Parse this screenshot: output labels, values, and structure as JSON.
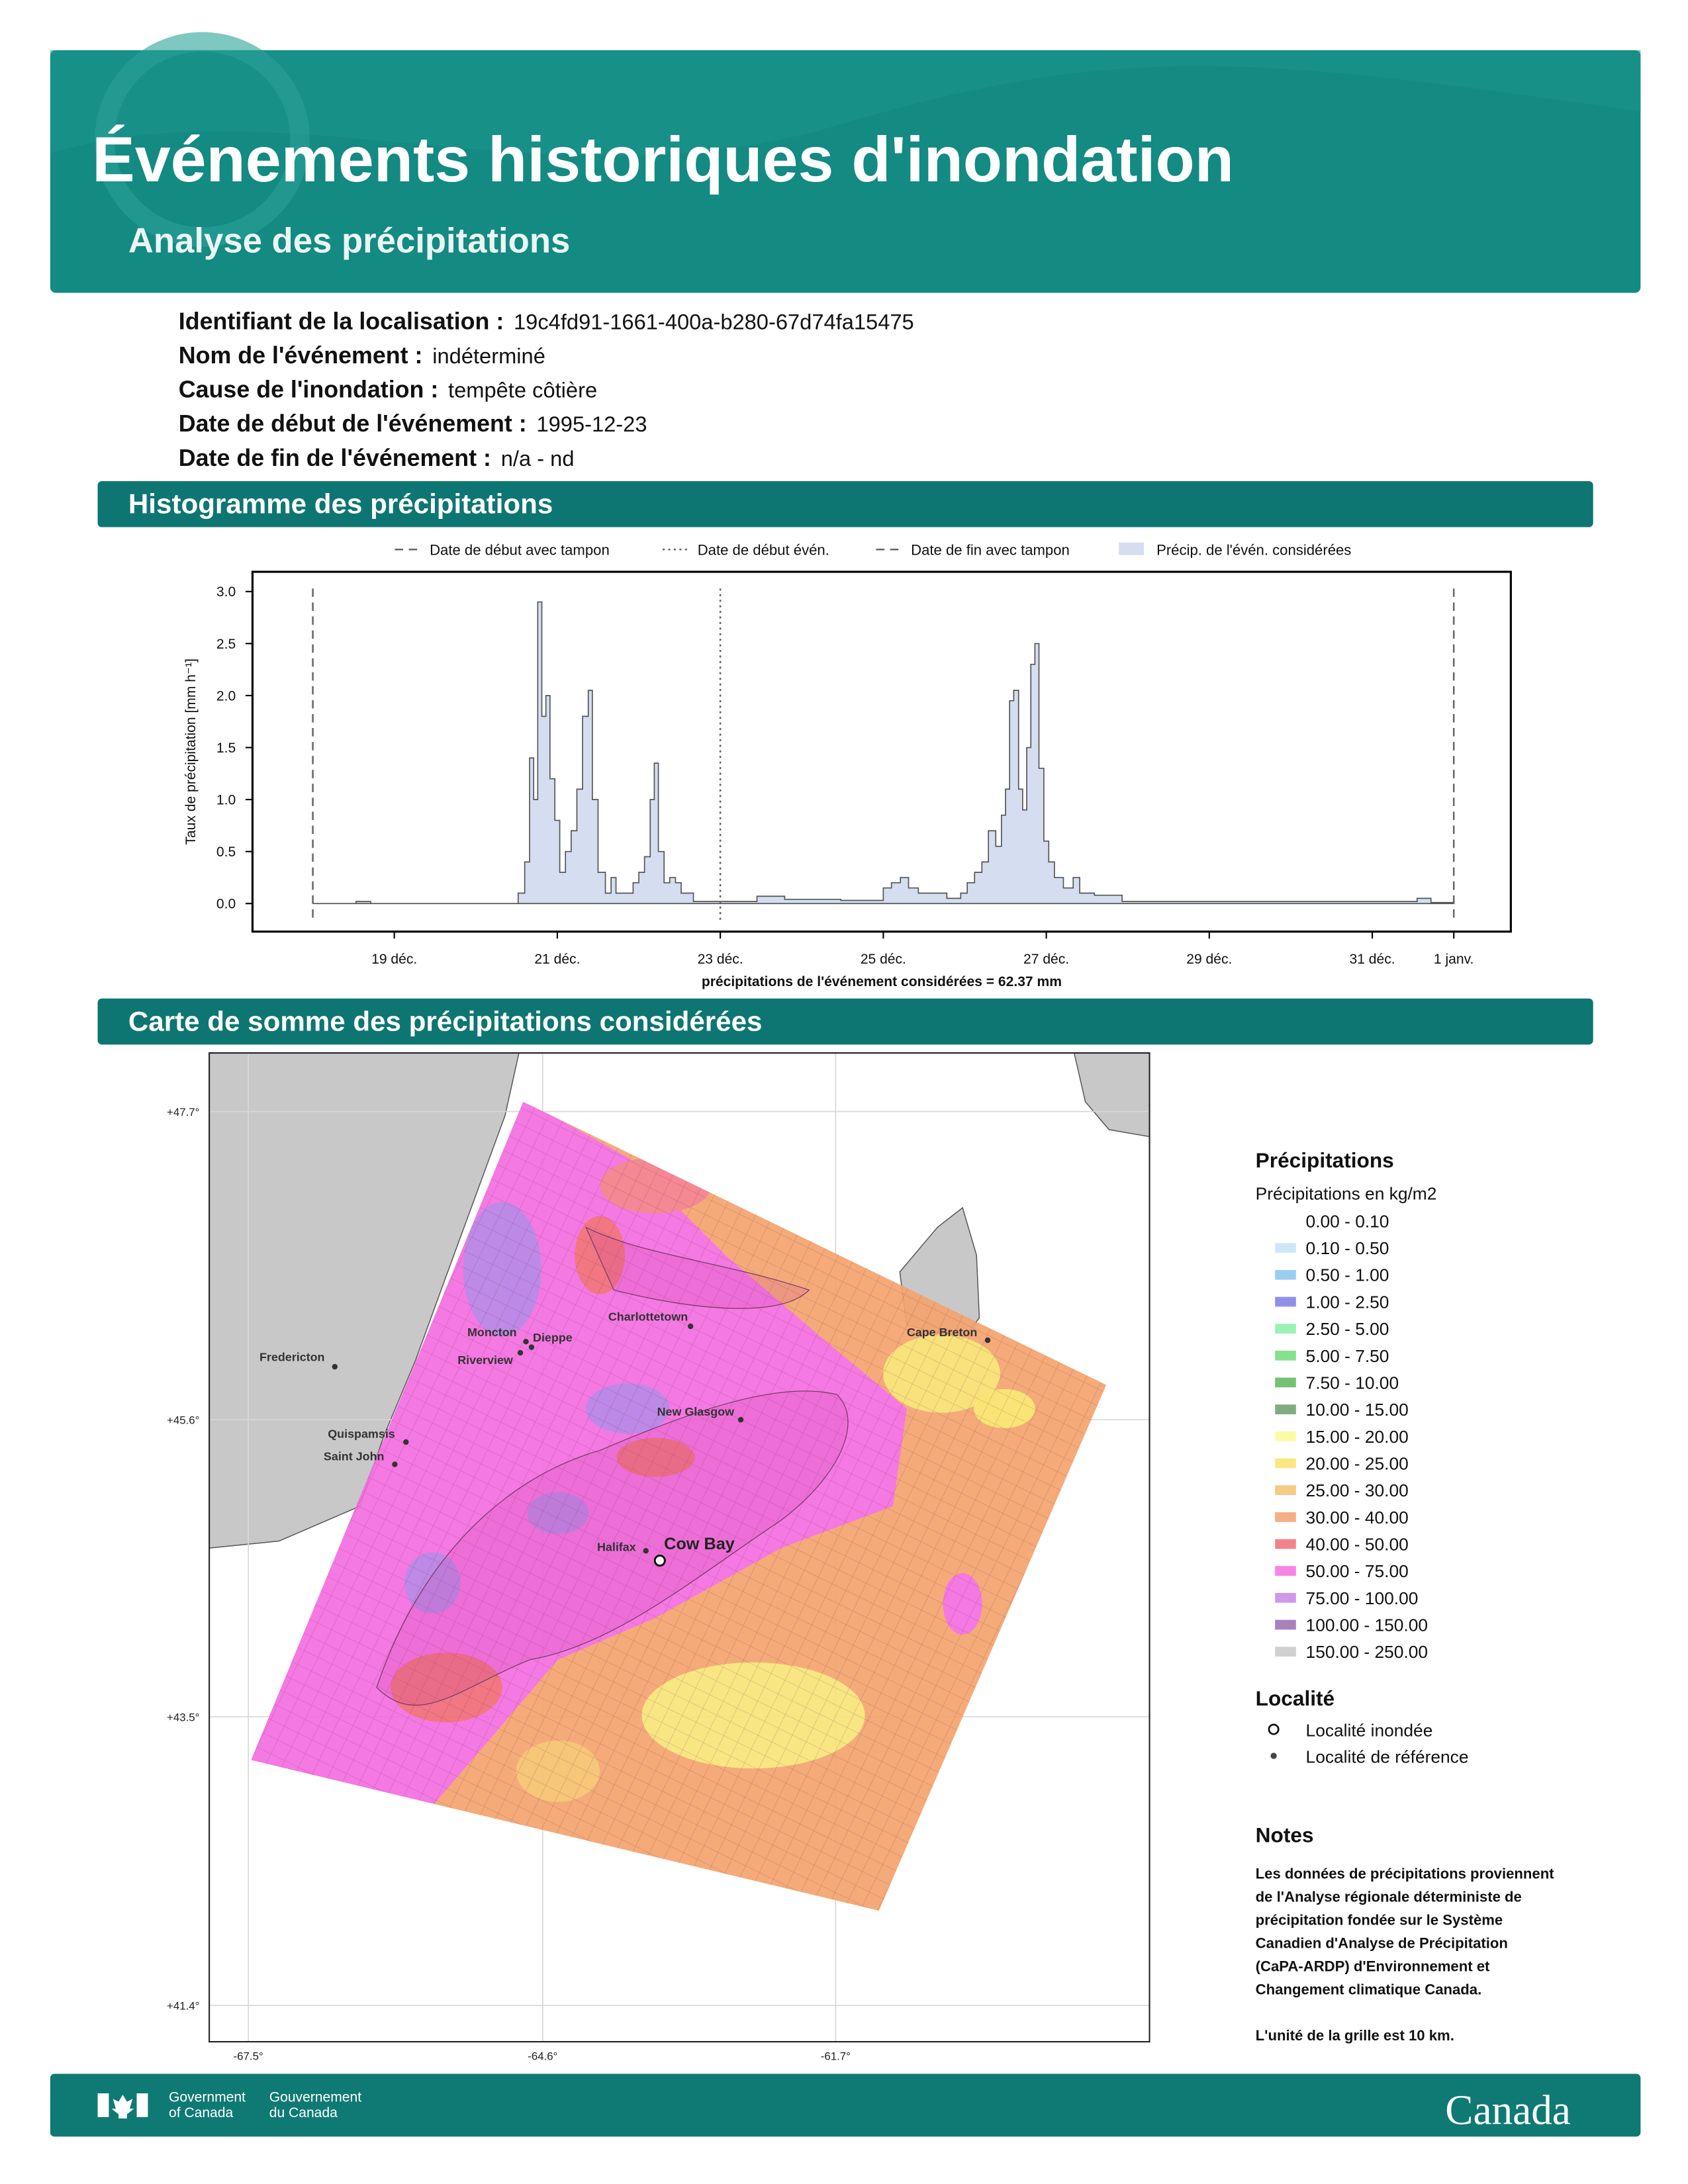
{
  "header": {
    "title": "Événements historiques d'inondation",
    "subtitle": "Analyse des précipitations"
  },
  "info": [
    {
      "label": "Identifiant de la localisation :",
      "value": "19c4fd91-1661-400a-b280-67d74fa15475"
    },
    {
      "label": "Nom de l'événement :",
      "value": "indéterminé"
    },
    {
      "label": "Cause de l'inondation :",
      "value": "tempête côtière"
    },
    {
      "label": "Date de début de l'événement :",
      "value": "1995-12-23"
    },
    {
      "label": "Date de fin de l'événement :",
      "value": "n/a - nd"
    }
  ],
  "sections": [
    "Histogramme des précipitations",
    "Carte de somme des précipitations considérées"
  ],
  "chart_data": {
    "type": "area",
    "step": true,
    "ylabel": "Taux de précipitation [mm h⁻¹]",
    "xlabel": "précipitations de l'événement considérées = 62.37 mm",
    "series": [
      {
        "name": "Précip. de l'évén. considérées",
        "color": "#d4def0",
        "edge": "#555555",
        "x": [
          18.0,
          18.53,
          18.71,
          20.52,
          20.6,
          20.66,
          20.71,
          20.76,
          20.81,
          20.86,
          20.91,
          20.97,
          21.03,
          21.1,
          21.17,
          21.24,
          21.31,
          21.38,
          21.43,
          21.5,
          21.59,
          21.66,
          21.72,
          21.86,
          21.93,
          22.0,
          22.07,
          22.14,
          22.19,
          22.24,
          22.31,
          22.38,
          22.45,
          22.52,
          22.67,
          23.45,
          23.79,
          24.48,
          25.0,
          25.1,
          25.21,
          25.31,
          25.43,
          25.6,
          25.78,
          25.95,
          26.03,
          26.12,
          26.21,
          26.29,
          26.38,
          26.45,
          26.5,
          26.55,
          26.6,
          26.66,
          26.71,
          26.76,
          26.81,
          26.86,
          26.91,
          26.97,
          27.03,
          27.1,
          27.21,
          27.33,
          27.41,
          27.59,
          27.93,
          31.55,
          31.72,
          32.0
        ],
        "values": [
          0.0,
          0.02,
          0.0,
          0.1,
          0.4,
          1.4,
          1.0,
          2.9,
          1.8,
          2.0,
          1.2,
          0.8,
          0.3,
          0.5,
          0.7,
          1.1,
          1.8,
          2.05,
          1.0,
          0.3,
          0.1,
          0.25,
          0.1,
          0.1,
          0.2,
          0.3,
          0.45,
          1.0,
          1.35,
          0.5,
          0.2,
          0.25,
          0.2,
          0.1,
          0.02,
          0.07,
          0.04,
          0.03,
          0.15,
          0.2,
          0.25,
          0.15,
          0.1,
          0.1,
          0.05,
          0.1,
          0.2,
          0.3,
          0.4,
          0.7,
          0.55,
          0.85,
          1.1,
          1.95,
          2.05,
          1.1,
          0.9,
          1.5,
          2.3,
          2.5,
          1.3,
          0.6,
          0.4,
          0.25,
          0.15,
          0.25,
          0.1,
          0.08,
          0.02,
          0.05,
          0.01,
          0.0
        ]
      }
    ],
    "markers": [
      {
        "name": "Date de début avec tampon",
        "x": 18,
        "style": "dashed",
        "color": "#666666"
      },
      {
        "name": "Date de début évén.",
        "x": 23,
        "style": "dotted",
        "color": "#666666"
      },
      {
        "name": "Date de fin avec tampon",
        "x": 32,
        "style": "dashed",
        "color": "#666666"
      }
    ],
    "xlim": [
      17.26,
      32.7
    ],
    "ylim": [
      -0.27,
      3.19
    ],
    "xticks": [
      {
        "value": 19,
        "label": "19 déc."
      },
      {
        "value": 21,
        "label": "21 déc."
      },
      {
        "value": 23,
        "label": "23 déc."
      },
      {
        "value": 25,
        "label": "25 déc."
      },
      {
        "value": 27,
        "label": "27 déc."
      },
      {
        "value": 29,
        "label": "29 déc."
      },
      {
        "value": 31,
        "label": "31 déc."
      },
      {
        "value": 32,
        "label": "1 janv."
      }
    ],
    "yticks": [
      {
        "value": 0,
        "label": "0.0"
      },
      0.5,
      {
        "value": 1,
        "label": "1.0"
      },
      1.5,
      {
        "value": 2,
        "label": "2.0"
      },
      2.5,
      {
        "value": 3,
        "label": "3.0"
      }
    ],
    "grid": false
  },
  "map": {
    "lat_ticks": [
      "+47.7°",
      "+45.6°",
      "+43.5°",
      "+41.4°"
    ],
    "lon_ticks": [
      "-67.5°",
      "-64.6°",
      "-61.7°"
    ],
    "places": [
      "Charlottetown",
      "Moncton",
      "Dieppe",
      "Riverview",
      "Fredericton",
      "New Glasgow",
      "Quispamsis",
      "Saint John",
      "Cape Breton",
      "Halifax"
    ],
    "flooded": "Cow Bay"
  },
  "legend": {
    "title": "Précipitations",
    "subtitle": "Précipitations en kg/m2",
    "items": [
      {
        "label": "0.00 - 0.10",
        "color": "#ffffff"
      },
      {
        "label": "0.10 - 0.50",
        "color": "#c6e3f7"
      },
      {
        "label": "0.50 - 1.00",
        "color": "#8ac4f0"
      },
      {
        "label": "1.00 - 2.50",
        "color": "#7d7de8"
      },
      {
        "label": "2.50 - 5.00",
        "color": "#88f0a8"
      },
      {
        "label": "5.00 - 7.50",
        "color": "#6fdc78"
      },
      {
        "label": "7.50 - 10.00",
        "color": "#5cb85c"
      },
      {
        "label": "10.00 - 15.00",
        "color": "#6b9e6b"
      },
      {
        "label": "15.00 - 20.00",
        "color": "#fafa96"
      },
      {
        "label": "20.00 - 25.00",
        "color": "#fae26a"
      },
      {
        "label": "25.00 - 30.00",
        "color": "#f6c26e"
      },
      {
        "label": "30.00 - 40.00",
        "color": "#f4a070"
      },
      {
        "label": "40.00 - 50.00",
        "color": "#f06c78"
      },
      {
        "label": "50.00 - 75.00",
        "color": "#f46ee0"
      },
      {
        "label": "75.00 - 100.00",
        "color": "#c886e6"
      },
      {
        "label": "100.00 - 150.00",
        "color": "#9a6ab0"
      },
      {
        "label": "150.00 - 250.00",
        "color": "#c8c8c8"
      }
    ],
    "locality_title": "Localité",
    "locality_items": [
      "Localité inondée",
      "Localité de référence"
    ],
    "notes_title": "Notes",
    "notes": [
      "Les données de précipitations proviennent",
      "de l'Analyse régionale déterministe de",
      "précipitation fondée sur le Système",
      "Canadien d'Analyse de Précipitation",
      "(CaPA-ARDP) d'Environnement et",
      "Changement climatique Canada."
    ],
    "grid_note": "L'unité de la grille est 10 km."
  },
  "footer": {
    "en": [
      "Government",
      "of Canada"
    ],
    "fr": [
      "Gouvernement",
      "du Canada"
    ],
    "wordmark": "Canada"
  }
}
